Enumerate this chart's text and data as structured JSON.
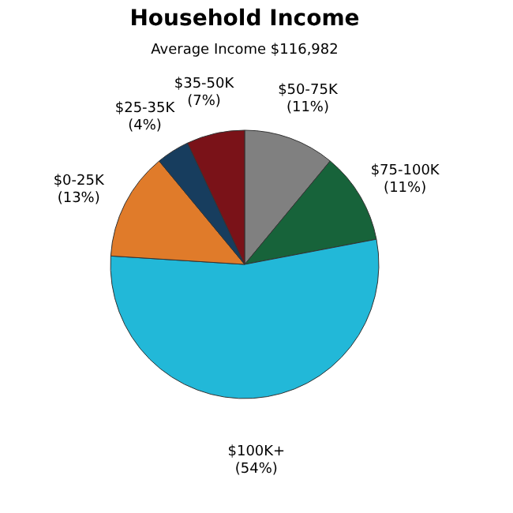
{
  "chart_data": {
    "type": "pie",
    "title": "Household Income",
    "subtitle": "Average Income  $116,982",
    "categories": [
      "$50-75K",
      "$75-100K",
      "$100K+",
      "$0-25K",
      "$25-35K",
      "$35-50K"
    ],
    "values": [
      11,
      11,
      54,
      13,
      4,
      7
    ],
    "colors": [
      "#808080",
      "#17633a",
      "#22b8d8",
      "#e07b2a",
      "#173d5e",
      "#7a1218"
    ],
    "value_labels": [
      "(11%)",
      "(11%)",
      "(54%)",
      "(13%)",
      "(4%)",
      "(7%)"
    ]
  }
}
